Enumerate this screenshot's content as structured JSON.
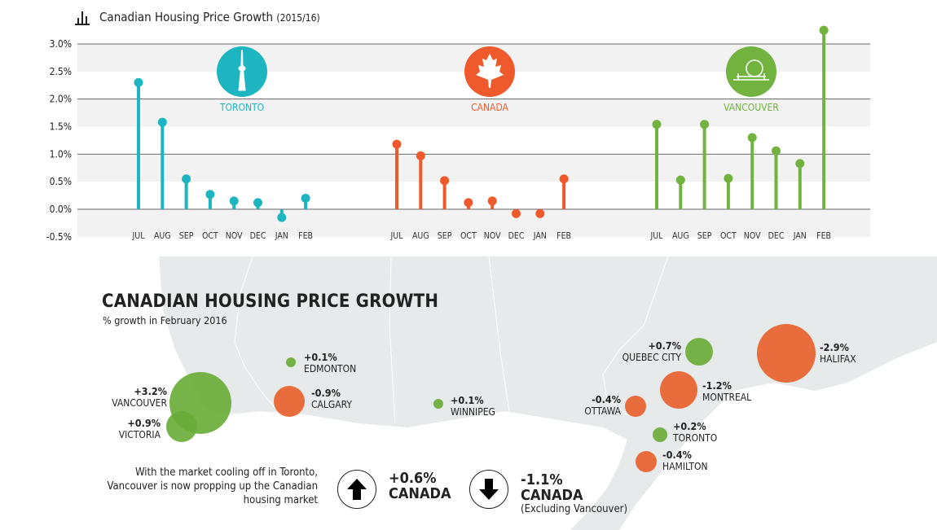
{
  "header": {
    "title": "Canadian Housing Price Growth",
    "subtitle": "(2015/16)",
    "icon": "bar-chart-icon"
  },
  "chart_data": {
    "type": "lollipop",
    "title": "Canadian Housing Price Growth (2015/16)",
    "ylim": [
      -0.5,
      3.0
    ],
    "yticks": [
      "3.0%",
      "2.5%",
      "2.0%",
      "1.5%",
      "1.0%",
      "0.5%",
      "0.0%",
      "-0.5%"
    ],
    "ytick_values": [
      3.0,
      2.5,
      2.0,
      1.5,
      1.0,
      0.5,
      0.0,
      -0.5
    ],
    "grid": true,
    "categories": [
      "JUL",
      "AUG",
      "SEP",
      "OCT",
      "NOV",
      "DEC",
      "JAN",
      "FEB"
    ],
    "series": [
      {
        "name": "TORONTO",
        "color": "#1cb5c0",
        "icon": "cn-tower-icon",
        "values": [
          2.3,
          1.58,
          0.55,
          0.27,
          0.15,
          0.12,
          -0.15,
          0.2
        ]
      },
      {
        "name": "CANADA",
        "color": "#ef5a2c",
        "icon": "maple-leaf-icon",
        "values": [
          1.18,
          0.97,
          0.52,
          0.12,
          0.15,
          -0.08,
          -0.08,
          0.55
        ]
      },
      {
        "name": "VANCOUVER",
        "color": "#72b23e",
        "icon": "science-world-icon",
        "values": [
          1.54,
          0.53,
          1.54,
          0.56,
          1.3,
          1.06,
          0.83,
          3.25
        ]
      }
    ]
  },
  "map": {
    "title": "CANADIAN HOUSING PRICE GROWTH",
    "subtitle": "% growth in February 2016",
    "colors": {
      "positive": "#6aad3a",
      "negative": "#e8612c",
      "land": "#e6eaea"
    },
    "cities": [
      {
        "name": "VANCOUVER",
        "value": "+3.2%"
      },
      {
        "name": "VICTORIA",
        "value": "+0.9%"
      },
      {
        "name": "EDMONTON",
        "value": "+0.1%"
      },
      {
        "name": "CALGARY",
        "value": "-0.9%"
      },
      {
        "name": "WINNIPEG",
        "value": "+0.1%"
      },
      {
        "name": "QUEBEC CITY",
        "value": "+0.7%"
      },
      {
        "name": "HALIFAX",
        "value": "-2.9%"
      },
      {
        "name": "MONTREAL",
        "value": "-1.2%"
      },
      {
        "name": "OTTAWA",
        "value": "-0.4%"
      },
      {
        "name": "TORONTO",
        "value": "+0.2%"
      },
      {
        "name": "HAMILTON",
        "value": "-0.4%"
      }
    ]
  },
  "summary": {
    "note": "With the market cooling off in Toronto, Vancouver is now propping up the Canadian housing market",
    "up": {
      "value": "+0.6%",
      "label": "CANADA",
      "icon": "arrow-up-icon"
    },
    "down": {
      "value": "-1.1%",
      "label": "CANADA",
      "sub": "(Excluding Vancouver)",
      "icon": "arrow-down-icon"
    }
  }
}
